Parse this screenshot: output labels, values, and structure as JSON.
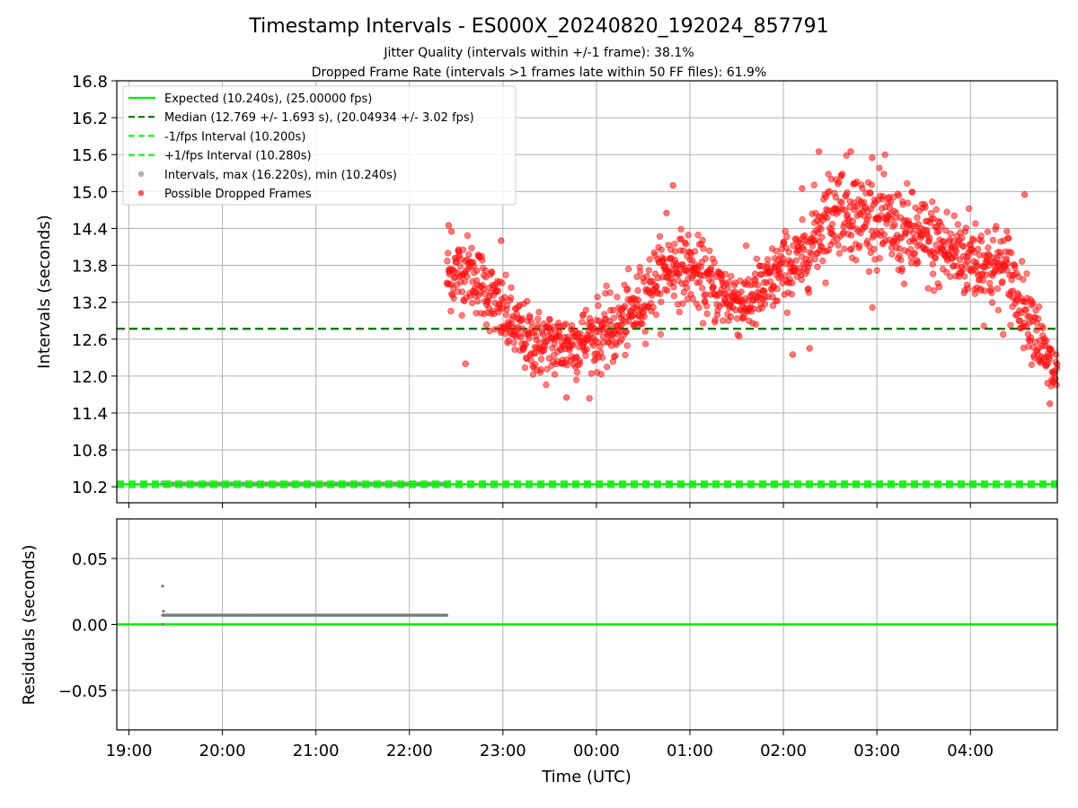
{
  "header": {
    "title": "Timestamp Intervals - ES000X_20240820_192024_857791",
    "subtitle_1": "Jitter Quality (intervals within +/-1 frame): 38.1%",
    "subtitle_2": "Dropped Frame Rate (intervals >1 frames late within 50 FF files): 61.9%"
  },
  "chart_data": [
    {
      "type": "scatter",
      "panel": "top",
      "ylabel": "Intervals (seconds)",
      "xlabel": "",
      "xlim": [
        18.87,
        28.93
      ],
      "ylim": [
        9.94,
        16.8
      ],
      "y_ticks": [
        10.2,
        10.8,
        11.4,
        12.0,
        12.6,
        13.2,
        13.8,
        14.4,
        15.0,
        15.6,
        16.2,
        16.8
      ],
      "y_tick_labels": [
        "10.2",
        "10.8",
        "11.4",
        "12.0",
        "12.6",
        "13.2",
        "13.8",
        "14.4",
        "15.0",
        "15.6",
        "16.2",
        "16.8"
      ],
      "grid": true,
      "legend_position": "upper-left",
      "legend": [
        {
          "label": "Expected (10.240s), (25.00000 fps)",
          "style": "solid",
          "color": "#00ee00"
        },
        {
          "label": "Median (12.769 +/- 1.693 s), (20.04934 +/- 3.02 fps)",
          "style": "dashed",
          "color": "#007700"
        },
        {
          "label": "-1/fps Interval (10.200s)",
          "style": "dashed",
          "color": "#22ee22"
        },
        {
          "label": "+1/fps Interval (10.280s)",
          "style": "dashed",
          "color": "#22ee22"
        },
        {
          "label": "Intervals, max (16.220s), min (10.240s)",
          "style": "marker",
          "color": "#999999"
        },
        {
          "label": "Possible Dropped Frames",
          "style": "marker",
          "color": "#ff2222"
        }
      ],
      "reference_lines": {
        "expected": 10.24,
        "median": 12.769,
        "minus_1_fps": 10.2,
        "plus_1_fps": 10.28
      },
      "series": [
        {
          "name": "Intervals, max (16.220s), min (10.240s)",
          "x_range": [
            19.36,
            22.4
          ],
          "y_constant": 10.247,
          "points": [
            {
              "x": 19.36,
              "y": 10.27
            }
          ]
        },
        {
          "name": "Possible Dropped Frames",
          "x_range": [
            22.4,
            28.93
          ],
          "trend": [
            {
              "x": 22.4,
              "y": 13.6
            },
            {
              "x": 22.6,
              "y": 13.75
            },
            {
              "x": 22.8,
              "y": 13.45
            },
            {
              "x": 23.0,
              "y": 13.0
            },
            {
              "x": 23.2,
              "y": 12.65
            },
            {
              "x": 23.4,
              "y": 12.5
            },
            {
              "x": 23.6,
              "y": 12.5
            },
            {
              "x": 23.8,
              "y": 12.55
            },
            {
              "x": 24.0,
              "y": 12.65
            },
            {
              "x": 24.2,
              "y": 12.75
            },
            {
              "x": 24.4,
              "y": 13.05
            },
            {
              "x": 24.6,
              "y": 13.5
            },
            {
              "x": 24.8,
              "y": 13.8
            },
            {
              "x": 25.0,
              "y": 13.75
            },
            {
              "x": 25.2,
              "y": 13.5
            },
            {
              "x": 25.4,
              "y": 13.3
            },
            {
              "x": 25.6,
              "y": 13.2
            },
            {
              "x": 25.8,
              "y": 13.4
            },
            {
              "x": 26.0,
              "y": 13.75
            },
            {
              "x": 26.2,
              "y": 13.85
            },
            {
              "x": 26.4,
              "y": 14.45
            },
            {
              "x": 26.6,
              "y": 14.8
            },
            {
              "x": 26.8,
              "y": 14.6
            },
            {
              "x": 27.0,
              "y": 14.55
            },
            {
              "x": 27.2,
              "y": 14.35
            },
            {
              "x": 27.4,
              "y": 14.25
            },
            {
              "x": 27.6,
              "y": 14.15
            },
            {
              "x": 27.8,
              "y": 14.0
            },
            {
              "x": 28.0,
              "y": 13.95
            },
            {
              "x": 28.2,
              "y": 13.8
            },
            {
              "x": 28.4,
              "y": 13.7
            },
            {
              "x": 28.55,
              "y": 13.2
            },
            {
              "x": 28.7,
              "y": 12.8
            },
            {
              "x": 28.8,
              "y": 12.25
            },
            {
              "x": 28.93,
              "y": 12.0
            }
          ],
          "outliers": [
            {
              "x": 22.42,
              "y": 14.45
            },
            {
              "x": 22.45,
              "y": 14.35
            },
            {
              "x": 22.98,
              "y": 14.2
            },
            {
              "x": 22.6,
              "y": 12.2
            },
            {
              "x": 23.68,
              "y": 11.65
            },
            {
              "x": 24.75,
              "y": 14.65
            },
            {
              "x": 24.82,
              "y": 15.1
            },
            {
              "x": 26.38,
              "y": 15.65
            },
            {
              "x": 26.72,
              "y": 15.65
            },
            {
              "x": 26.95,
              "y": 15.55
            },
            {
              "x": 26.2,
              "y": 15.05
            },
            {
              "x": 26.1,
              "y": 12.35
            },
            {
              "x": 26.28,
              "y": 12.45
            },
            {
              "x": 28.85,
              "y": 11.55
            },
            {
              "x": 28.58,
              "y": 14.95
            }
          ]
        }
      ]
    },
    {
      "type": "scatter",
      "panel": "bottom",
      "ylabel": "Residuals (seconds)",
      "xlabel": "Time (UTC)",
      "xlim": [
        18.87,
        28.93
      ],
      "ylim": [
        -0.08,
        0.08
      ],
      "y_ticks": [
        -0.05,
        0.0,
        0.05
      ],
      "y_tick_labels": [
        "−0.05",
        "0.00",
        "0.05"
      ],
      "x_ticks": [
        19,
        20,
        21,
        22,
        23,
        24,
        25,
        26,
        27,
        28
      ],
      "x_tick_labels": [
        "19:00",
        "20:00",
        "21:00",
        "22:00",
        "23:00",
        "00:00",
        "01:00",
        "02:00",
        "03:00",
        "04:00"
      ],
      "grid": true,
      "reference_lines": {
        "zero": 0.0
      },
      "series": [
        {
          "name": "Residuals",
          "x_range": [
            19.36,
            22.4
          ],
          "y_constant": 0.007,
          "points": [
            {
              "x": 19.36,
              "y": 0.029
            },
            {
              "x": 19.36,
              "y": 0.0
            },
            {
              "x": 19.37,
              "y": 0.01
            }
          ]
        }
      ]
    }
  ]
}
